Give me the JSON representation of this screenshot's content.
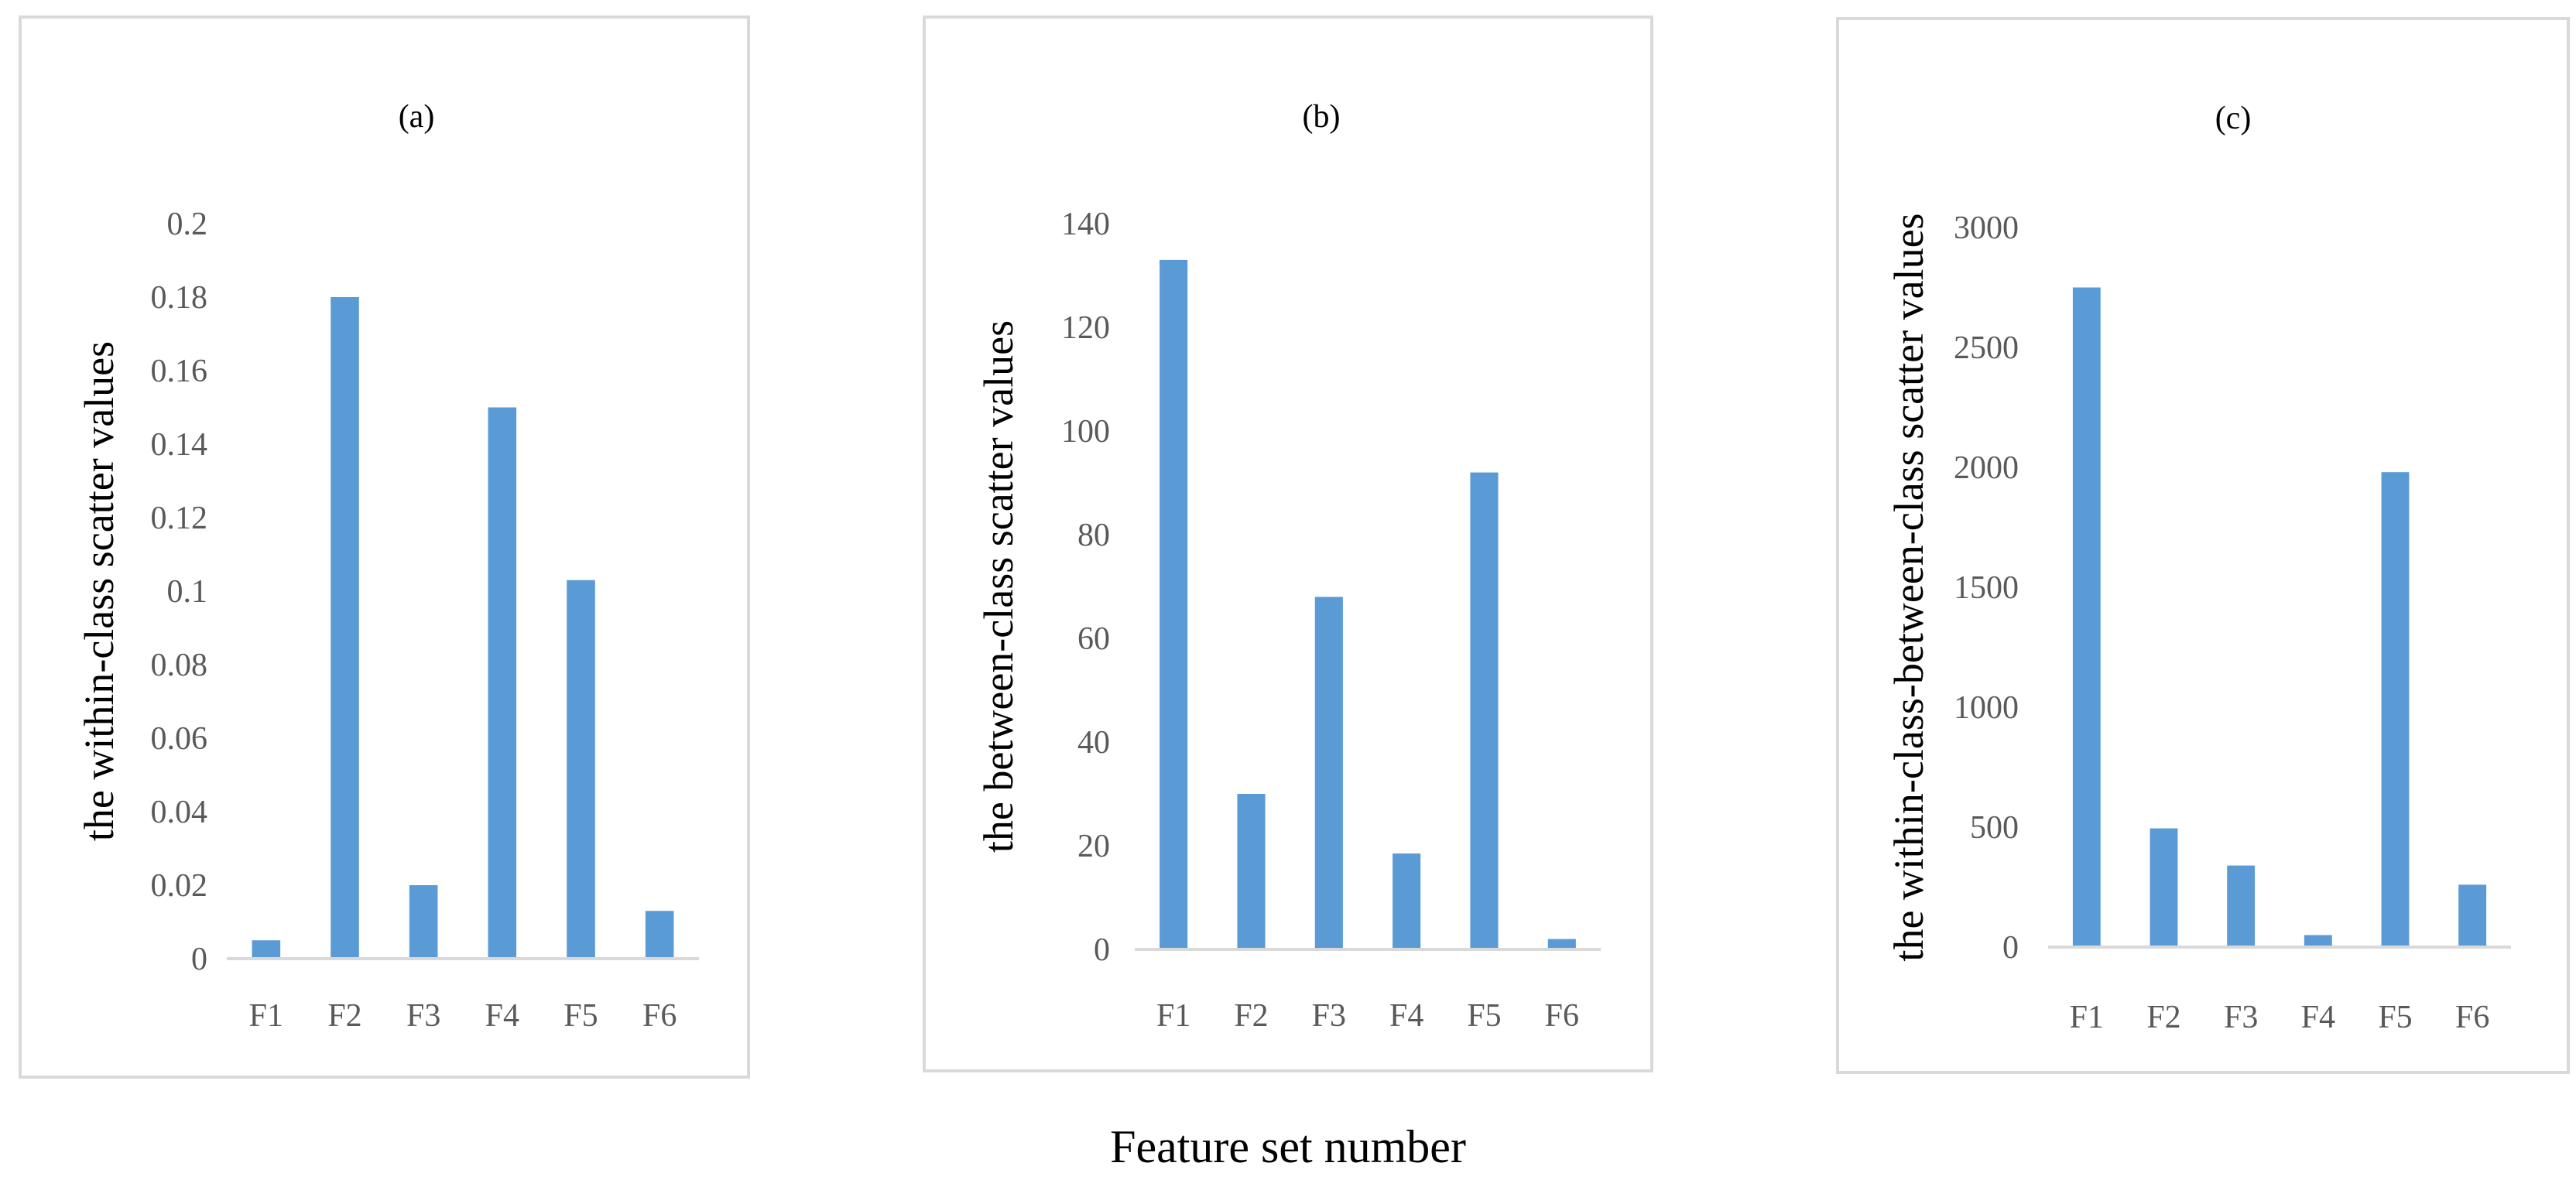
{
  "colors": {
    "bar": "#5b9bd5",
    "axis": "#d9d9d9",
    "tick_text": "#595959",
    "border": "#d9d9d9"
  },
  "xlabel": "Feature set number",
  "chart_data": [
    {
      "type": "bar",
      "title": "(a)",
      "ylabel": "the  within-class scatter values",
      "categories": [
        "F1",
        "F2",
        "F3",
        "F4",
        "F5",
        "F6"
      ],
      "values": [
        0.005,
        0.18,
        0.02,
        0.15,
        0.103,
        0.013
      ],
      "ylim": [
        0,
        0.2
      ],
      "yticks": [
        0,
        0.02,
        0.04,
        0.06,
        0.08,
        0.1,
        0.12,
        0.14,
        0.16,
        0.18,
        0.2
      ],
      "grid": false
    },
    {
      "type": "bar",
      "title": "(b)",
      "ylabel": "the between-class scatter values",
      "categories": [
        "F1",
        "F2",
        "F3",
        "F4",
        "F5",
        "F6"
      ],
      "values": [
        133,
        30,
        68,
        18.5,
        92,
        2
      ],
      "ylim": [
        0,
        140
      ],
      "yticks": [
        0,
        20,
        40,
        60,
        80,
        100,
        120,
        140
      ],
      "grid": false
    },
    {
      "type": "bar",
      "title": "(c)",
      "ylabel": "the  within-class-between-class scatter values",
      "categories": [
        "F1",
        "F2",
        "F3",
        "F4",
        "F5",
        "F6"
      ],
      "values": [
        2750,
        495,
        340,
        50,
        1980,
        260
      ],
      "ylim": [
        0,
        3000
      ],
      "yticks": [
        0,
        500,
        1000,
        1500,
        2000,
        2500,
        3000
      ],
      "grid": false
    }
  ]
}
